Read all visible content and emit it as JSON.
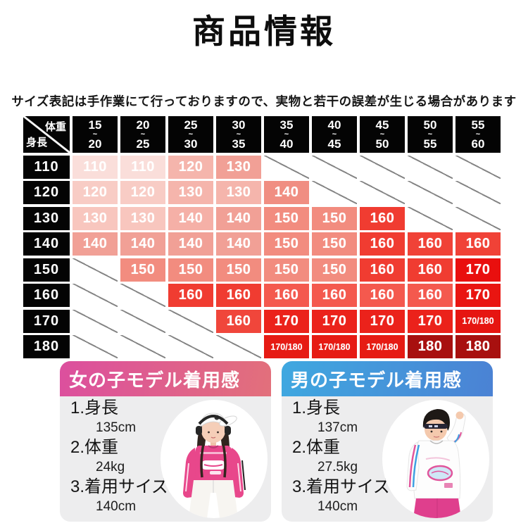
{
  "page": {
    "title": "商品情報",
    "note": "サイズ表記は手作業にて行っておりますので、実物と若干の誤差が生じる場合があります"
  },
  "size_table": {
    "corner": {
      "weight_label": "体重",
      "height_label": "身長"
    },
    "tilde": "~",
    "columns": [
      {
        "from": "15",
        "to": "20"
      },
      {
        "from": "20",
        "to": "25"
      },
      {
        "from": "25",
        "to": "30"
      },
      {
        "from": "30",
        "to": "35"
      },
      {
        "from": "35",
        "to": "40"
      },
      {
        "from": "40",
        "to": "45"
      },
      {
        "from": "45",
        "to": "50"
      },
      {
        "from": "50",
        "to": "55"
      },
      {
        "from": "55",
        "to": "60"
      }
    ],
    "rows": [
      {
        "height": "110",
        "cells": [
          {
            "v": "110",
            "c": "#fadeda"
          },
          {
            "v": "110",
            "c": "#fadeda"
          },
          {
            "v": "120",
            "c": "#f5b5ac"
          },
          {
            "v": "130",
            "c": "#f1a096"
          },
          null,
          null,
          null,
          null,
          null
        ]
      },
      {
        "height": "120",
        "cells": [
          {
            "v": "120",
            "c": "#f8ccc5"
          },
          {
            "v": "120",
            "c": "#f8ccc5"
          },
          {
            "v": "130",
            "c": "#f5b5ac"
          },
          {
            "v": "130",
            "c": "#f5b5ac"
          },
          {
            "v": "140",
            "c": "#f08e82"
          },
          null,
          null,
          null,
          null
        ]
      },
      {
        "height": "130",
        "cells": [
          {
            "v": "130",
            "c": "#f8c6be"
          },
          {
            "v": "130",
            "c": "#f8c6be"
          },
          {
            "v": "140",
            "c": "#f5b0a7"
          },
          {
            "v": "140",
            "c": "#f1a096"
          },
          {
            "v": "150",
            "c": "#f28c7f"
          },
          {
            "v": "150",
            "c": "#f28c7f"
          },
          {
            "v": "160",
            "c": "#f03c31"
          },
          null,
          null
        ]
      },
      {
        "height": "140",
        "cells": [
          {
            "v": "140",
            "c": "#f1a096"
          },
          {
            "v": "140",
            "c": "#f1a096"
          },
          {
            "v": "140",
            "c": "#f1a096"
          },
          {
            "v": "140",
            "c": "#f1a096"
          },
          {
            "v": "150",
            "c": "#f28c7f"
          },
          {
            "v": "150",
            "c": "#f28c7f"
          },
          {
            "v": "160",
            "c": "#f03c31"
          },
          {
            "v": "160",
            "c": "#f04237"
          },
          {
            "v": "160",
            "c": "#f04237"
          }
        ]
      },
      {
        "height": "150",
        "cells": [
          null,
          {
            "v": "150",
            "c": "#f28c7f"
          },
          {
            "v": "150",
            "c": "#f28c7f"
          },
          {
            "v": "150",
            "c": "#f28c7f"
          },
          {
            "v": "150",
            "c": "#f28c7f"
          },
          {
            "v": "150",
            "c": "#f28c7f"
          },
          {
            "v": "160",
            "c": "#f03c31"
          },
          {
            "v": "160",
            "c": "#f03c31"
          },
          {
            "v": "170",
            "c": "#e90f0e"
          }
        ]
      },
      {
        "height": "160",
        "cells": [
          null,
          null,
          {
            "v": "160",
            "c": "#f03c31"
          },
          {
            "v": "160",
            "c": "#f03c31"
          },
          {
            "v": "160",
            "c": "#f4594e"
          },
          {
            "v": "160",
            "c": "#f4594e"
          },
          {
            "v": "160",
            "c": "#f4594e"
          },
          {
            "v": "160",
            "c": "#f4594e"
          },
          {
            "v": "170",
            "c": "#e91511"
          }
        ]
      },
      {
        "height": "170",
        "cells": [
          null,
          null,
          null,
          {
            "v": "160",
            "c": "#f0463b"
          },
          {
            "v": "170",
            "c": "#eb221b"
          },
          {
            "v": "170",
            "c": "#eb221b"
          },
          {
            "v": "170",
            "c": "#eb221b"
          },
          {
            "v": "170",
            "c": "#eb221b"
          },
          {
            "v": "170/180",
            "c": "#e61511"
          }
        ]
      },
      {
        "height": "180",
        "cells": [
          null,
          null,
          null,
          null,
          {
            "v": "170/180",
            "c": "#e61b14"
          },
          {
            "v": "170/180",
            "c": "#e61b14"
          },
          {
            "v": "170/180",
            "c": "#e61b14"
          },
          {
            "v": "180",
            "c": "#a8100f"
          },
          {
            "v": "180",
            "c": "#a8100f"
          }
        ]
      }
    ]
  },
  "panels": [
    {
      "title": "女の子モデル着用感",
      "theme": {
        "from": "#dc4f9e",
        "to": "#e2707b"
      },
      "items": [
        {
          "label": "1.身長",
          "value": "135cm"
        },
        {
          "label": "2.体重",
          "value": "24kg"
        },
        {
          "label": "3.着用サイズ",
          "value": "140cm"
        }
      ]
    },
    {
      "title": "男の子モデル着用感",
      "theme": {
        "from": "#3fa8e0",
        "to": "#4b82d4"
      },
      "items": [
        {
          "label": "1.身長",
          "value": "137cm"
        },
        {
          "label": "2.体重",
          "value": "27.5kg"
        },
        {
          "label": "3.着用サイズ",
          "value": "140cm"
        }
      ]
    }
  ]
}
